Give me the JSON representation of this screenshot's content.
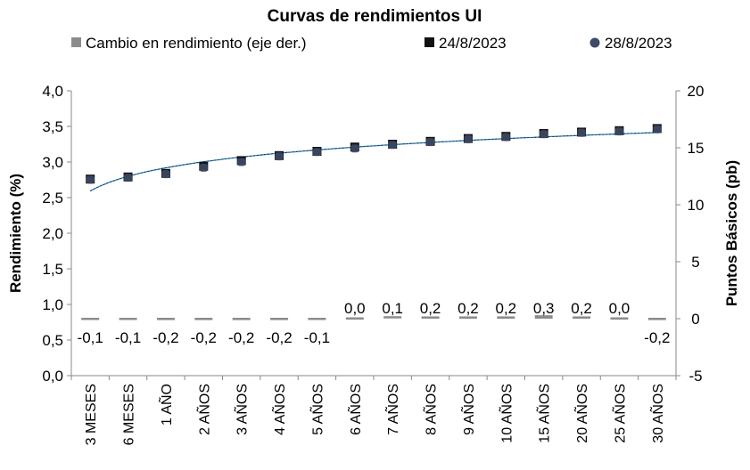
{
  "chart_data": {
    "type": "line",
    "title": "Curvas de rendimientos UI",
    "ylabel": "Rendimiento (%)",
    "y2label": "Puntos Básicos (pb)",
    "ylim": [
      0,
      4
    ],
    "y_ticks": [
      "0,0",
      "0,5",
      "1,0",
      "1,5",
      "2,0",
      "2,5",
      "3,0",
      "3,5",
      "4,0"
    ],
    "y2lim": [
      -5,
      20
    ],
    "y2_ticks": [
      "-5",
      "0",
      "5",
      "10",
      "15",
      "20"
    ],
    "categories": [
      "3 MESES",
      "6 MESES",
      "1 AÑO",
      "2 AÑOS",
      "3 AÑOS",
      "4 AÑOS",
      "5 AÑOS",
      "6 AÑOS",
      "7 AÑOS",
      "8 AÑOS",
      "9 AÑOS",
      "10 AÑOS",
      "15 AÑOS",
      "20 AÑOS",
      "25 AÑOS",
      "30 AÑOS"
    ],
    "legend_position": "top",
    "grid": false,
    "series": [
      {
        "name": "Cambio en rendimiento (eje der.)",
        "kind": "bar",
        "axis": "right",
        "color": "#8c8c8c",
        "values": [
          -0.1,
          -0.1,
          -0.2,
          -0.2,
          -0.2,
          -0.2,
          -0.1,
          0.0,
          0.1,
          0.2,
          0.2,
          0.2,
          0.3,
          0.2,
          0.0,
          -0.2
        ],
        "labels": [
          "-0,1",
          "-0,1",
          "-0,2",
          "-0,2",
          "-0,2",
          "-0,2",
          "-0,1",
          "0,0",
          "0,1",
          "0,2",
          "0,2",
          "0,2",
          "0,3",
          "0,2",
          "0,0",
          "-0,2"
        ]
      },
      {
        "name": "24/8/2023",
        "kind": "square-marker",
        "axis": "left",
        "color": "#111111",
        "values": [
          2.76,
          2.79,
          2.84,
          2.94,
          3.02,
          3.09,
          3.15,
          3.21,
          3.25,
          3.29,
          3.33,
          3.36,
          3.4,
          3.42,
          3.44,
          3.47
        ]
      },
      {
        "name": "28/8/2023",
        "kind": "round-marker",
        "axis": "left",
        "color": "#3d4b66",
        "values": [
          2.75,
          2.78,
          2.83,
          2.92,
          3.0,
          3.08,
          3.14,
          3.19,
          3.24,
          3.28,
          3.32,
          3.35,
          3.39,
          3.41,
          3.43,
          3.46
        ]
      }
    ],
    "fit_line": {
      "color": "#2e86c1"
    }
  }
}
